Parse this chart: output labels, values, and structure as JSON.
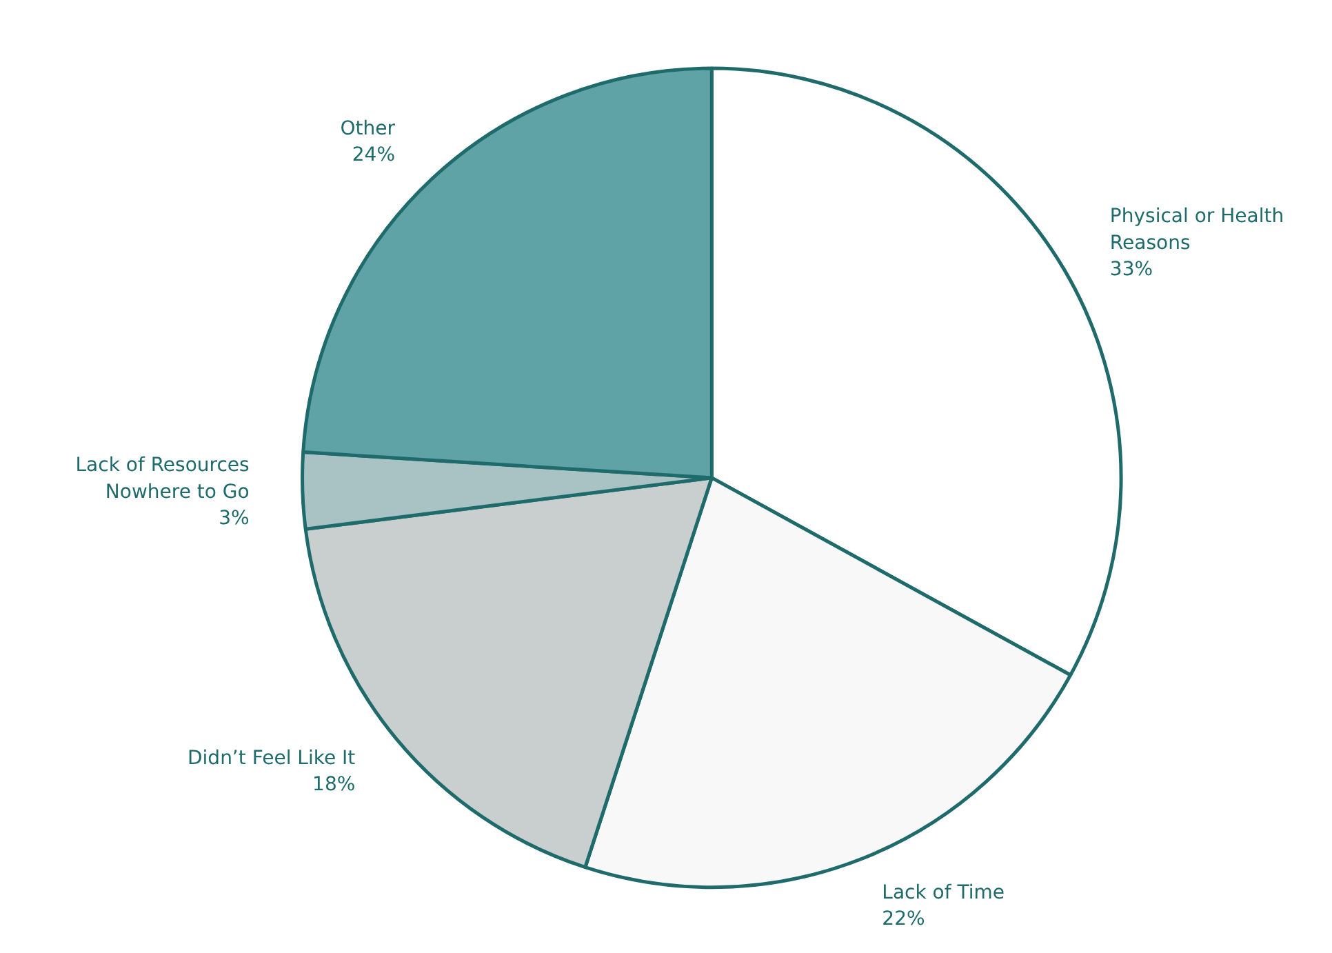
{
  "chart_data": {
    "type": "pie",
    "categories": [
      "Physical or Health\nReasons",
      "Lack of Time",
      "Didn’t Feel Like It",
      "Lack of Resources\nNowhere to Go",
      "Other"
    ],
    "values": [
      33,
      22,
      18,
      3,
      24
    ],
    "value_labels": [
      "33%",
      "22%",
      "18%",
      "3%",
      "24%"
    ],
    "colors": [
      "#ffffff",
      "#f8f8f8",
      "#c9cfcf",
      "#a9c3c4",
      "#5fa3a6"
    ]
  }
}
